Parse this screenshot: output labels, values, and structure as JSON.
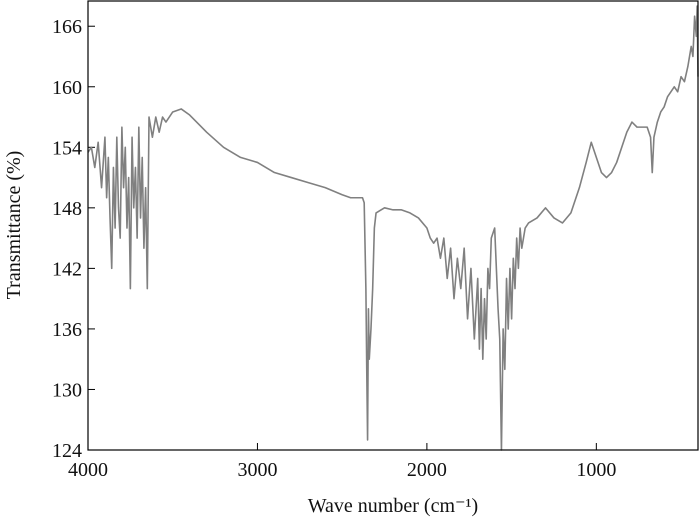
{
  "chart_data": {
    "type": "line",
    "xlabel": "Wave number (cm⁻¹)",
    "ylabel": "Transmittance (%)",
    "xlim": [
      4000,
      400
    ],
    "ylim": [
      124,
      168.5
    ],
    "xticks": [
      4000,
      3000,
      2000,
      1000
    ],
    "yticks": [
      124,
      130,
      136,
      142,
      148,
      154,
      160,
      166
    ],
    "series": [
      {
        "color": "#808080",
        "x": [
          4000,
          3980,
          3960,
          3940,
          3920,
          3900,
          3890,
          3880,
          3870,
          3860,
          3850,
          3840,
          3830,
          3820,
          3810,
          3800,
          3790,
          3780,
          3770,
          3760,
          3750,
          3740,
          3730,
          3720,
          3710,
          3700,
          3690,
          3680,
          3670,
          3660,
          3650,
          3640,
          3620,
          3600,
          3580,
          3560,
          3540,
          3500,
          3450,
          3400,
          3300,
          3200,
          3100,
          3000,
          2900,
          2800,
          2700,
          2600,
          2500,
          2450,
          2400,
          2380,
          2370,
          2360,
          2355,
          2350,
          2345,
          2340,
          2330,
          2320,
          2310,
          2300,
          2250,
          2200,
          2150,
          2100,
          2050,
          2000,
          1980,
          1960,
          1940,
          1920,
          1900,
          1880,
          1860,
          1840,
          1820,
          1800,
          1780,
          1760,
          1740,
          1720,
          1700,
          1690,
          1680,
          1670,
          1660,
          1650,
          1640,
          1630,
          1620,
          1600,
          1580,
          1570,
          1560,
          1550,
          1540,
          1530,
          1520,
          1510,
          1500,
          1490,
          1480,
          1470,
          1460,
          1450,
          1440,
          1420,
          1400,
          1350,
          1300,
          1250,
          1200,
          1150,
          1100,
          1060,
          1030,
          1000,
          970,
          940,
          910,
          880,
          850,
          820,
          790,
          760,
          730,
          700,
          680,
          670,
          660,
          640,
          620,
          600,
          580,
          560,
          540,
          520,
          500,
          480,
          460,
          440,
          430,
          420,
          410,
          405,
          400
        ],
        "values": [
          153.5,
          154,
          152,
          154.5,
          150,
          155,
          149,
          153,
          147,
          142,
          152,
          146,
          155,
          148,
          145,
          156,
          150,
          154,
          146,
          151,
          140,
          155,
          148,
          152,
          145,
          156,
          147,
          153,
          144,
          150,
          140,
          157,
          155,
          157,
          155.5,
          157,
          156.5,
          157.5,
          157.8,
          157.2,
          155.5,
          154,
          153,
          152.5,
          151.5,
          151,
          150.5,
          150,
          149.3,
          149,
          149,
          149,
          148.5,
          140,
          132,
          125,
          138,
          133,
          136,
          140,
          146,
          147.5,
          148,
          147.8,
          147.8,
          147.5,
          147,
          146,
          145,
          144.5,
          145,
          143,
          145,
          141,
          144,
          139,
          143,
          140,
          144,
          137,
          142,
          135,
          141,
          134,
          140,
          133,
          139,
          135,
          142,
          140,
          145,
          146,
          138,
          135,
          124,
          136,
          132,
          141,
          136,
          142,
          137,
          143,
          140,
          145,
          142,
          146,
          144,
          146,
          146.5,
          147,
          148,
          147,
          146.5,
          147.5,
          150,
          152.5,
          154.5,
          153,
          151.5,
          151,
          151.5,
          152.5,
          154,
          155.5,
          156.5,
          156,
          156,
          156,
          155,
          151.5,
          155,
          156.5,
          157.5,
          158,
          159,
          159.5,
          160,
          159.5,
          161,
          160.5,
          162,
          164,
          163,
          167,
          165,
          168,
          161
        ]
      }
    ]
  }
}
